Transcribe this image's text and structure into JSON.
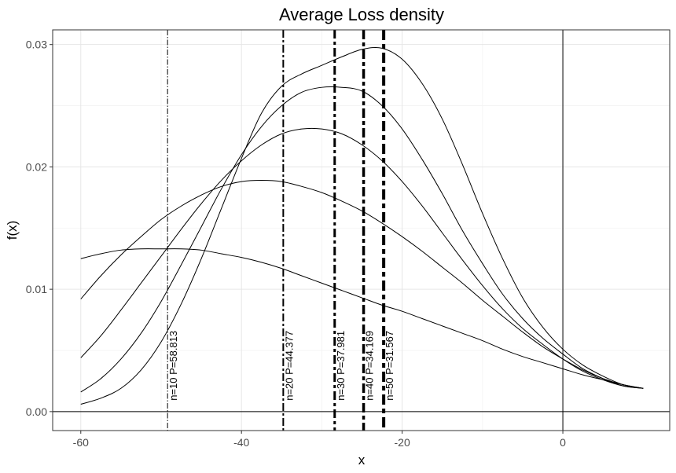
{
  "chart_data": {
    "type": "line",
    "title": "Average Loss density",
    "xlabel": "x",
    "ylabel": "f(x)",
    "xlim": [
      -63.5,
      13.3
    ],
    "ylim": [
      -0.00155,
      0.0312
    ],
    "x_ticks": [
      -60,
      -40,
      -20,
      0
    ],
    "x_tick_labels": [
      "-60",
      "-40",
      "-20",
      "0"
    ],
    "y_ticks": [
      0.0,
      0.01,
      0.02,
      0.03
    ],
    "y_tick_labels": [
      "0.00",
      "0.01",
      "0.02",
      "0.03"
    ],
    "grid": true,
    "x": [
      -60,
      -57.5,
      -55,
      -52.5,
      -50,
      -47.5,
      -45,
      -42.5,
      -40,
      -37.5,
      -35,
      -32.5,
      -30,
      -27.5,
      -25,
      -22.5,
      -20,
      -17.5,
      -15,
      -12.5,
      -10,
      -7.5,
      -5,
      -2.5,
      0,
      2.5,
      5,
      7.5,
      10
    ],
    "series": [
      {
        "values": [
          0.0125,
          0.0129,
          0.0132,
          0.0133,
          0.0133,
          0.0133,
          0.0132,
          0.0129,
          0.0126,
          0.0122,
          0.0117,
          0.0111,
          0.0105,
          0.0099,
          0.0093,
          0.0087,
          0.0082,
          0.0076,
          0.007,
          0.0064,
          0.0058,
          0.0051,
          0.0045,
          0.004,
          0.0035,
          0.003,
          0.0026,
          0.0022,
          0.0019
        ]
      },
      {
        "values": [
          0.0092,
          0.0111,
          0.0128,
          0.0143,
          0.0157,
          0.0168,
          0.0177,
          0.0184,
          0.0188,
          0.0189,
          0.0188,
          0.0184,
          0.0179,
          0.0172,
          0.0164,
          0.0154,
          0.0143,
          0.0131,
          0.0118,
          0.0105,
          0.0091,
          0.0078,
          0.0065,
          0.0053,
          0.0043,
          0.0034,
          0.0027,
          0.0022,
          0.0019
        ]
      },
      {
        "values": [
          0.0044,
          0.0062,
          0.0083,
          0.0105,
          0.0127,
          0.0149,
          0.017,
          0.0189,
          0.0205,
          0.0218,
          0.0227,
          0.0231,
          0.0231,
          0.0227,
          0.0218,
          0.0205,
          0.0188,
          0.0168,
          0.0146,
          0.0124,
          0.0103,
          0.0084,
          0.0068,
          0.0055,
          0.0043,
          0.0033,
          0.0026,
          0.0021,
          0.0019
        ]
      },
      {
        "values": [
          0.0016,
          0.0027,
          0.0043,
          0.0064,
          0.009,
          0.012,
          0.0151,
          0.0182,
          0.021,
          0.0233,
          0.025,
          0.0261,
          0.0265,
          0.0265,
          0.0262,
          0.025,
          0.0231,
          0.0206,
          0.0178,
          0.0148,
          0.0121,
          0.0096,
          0.0076,
          0.006,
          0.0047,
          0.0035,
          0.0027,
          0.0021,
          0.0019
        ]
      },
      {
        "values": [
          0.0006,
          0.0011,
          0.0019,
          0.0034,
          0.0057,
          0.0088,
          0.0125,
          0.0166,
          0.0207,
          0.0244,
          0.0266,
          0.0276,
          0.0283,
          0.029,
          0.0296,
          0.0297,
          0.0288,
          0.0268,
          0.0239,
          0.0202,
          0.0162,
          0.0125,
          0.0093,
          0.0069,
          0.0051,
          0.0038,
          0.0029,
          0.0022,
          0.0019
        ]
      }
    ],
    "vlines": [
      {
        "x": -49.2,
        "label": "n=10  P=58.813",
        "dash": "7,2,1.5,2",
        "width": 1
      },
      {
        "x": -34.8,
        "label": "n=20  P=44.377",
        "dash": "10,3,3,3",
        "width": 2
      },
      {
        "x": -28.4,
        "label": "n=30  P=37.981",
        "dash": "11,4,4,4",
        "width": 3
      },
      {
        "x": -24.8,
        "label": "n=40  P=34.169",
        "dash": "12,4,5,4",
        "width": 3.5
      },
      {
        "x": -22.3,
        "label": "n=50  P=31.567",
        "dash": "13,5,6,5",
        "width": 4
      }
    ],
    "reference_lines": {
      "vertical_x": 0,
      "horizontal_y": 0
    }
  }
}
